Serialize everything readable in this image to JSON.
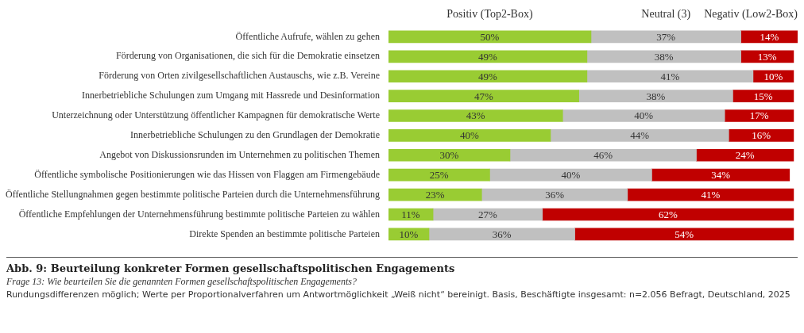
{
  "chart_data": {
    "type": "bar",
    "orientation": "horizontal",
    "stacked": true,
    "legend": "top",
    "tick_labels": "y",
    "title": "Abb. 9: Beurteilung konkreter Formen gesellschaftspolitischen Engagements",
    "subtitle": "Frage 13: Wie beurteilen Sie die genannten Formen gesellschaftspolitischen Engagements?",
    "annotations": [
      "Rundungsdifferenzen möglich; Werte per Proportionalverfahren um Antwortmöglichkeit „Weiß nicht“ bereinigt. Basis, Beschäftigte insgesamt: n=2.056 Befragt, Deutschland, 2025"
    ],
    "categories": [
      "Öffentliche Aufrufe, wählen zu gehen",
      "Förderung von Organisationen, die sich für die Demokratie einsetzen",
      "Förderung von Orten zivilgesellschaftlichen Austauschs, wie z.B. Vereine",
      "Innerbetriebliche Schulungen zum Umgang mit Hassrede und Desinformation",
      "Unterzeichnung oder Unterstützung öffentlicher Kampagnen für demokratische Werte",
      "Innerbetriebliche Schulungen zu den Grundlagen der Demokratie",
      "Angebot von Diskussionsrunden im Unternehmen zu politischen Themen",
      "Öffentliche symbolische Positionierungen wie das Hissen von Flaggen am Firmengebäude",
      "Öffentliche Stellungnahmen gegen bestimmte politische Parteien durch die Unternehmensführung",
      "Öffentliche Empfehlungen der Unternehmensführung bestimmte politische Parteien zu wählen",
      "Direkte Spenden an bestimmte politische Parteien"
    ],
    "xlim": [
      0,
      101
    ],
    "series": [
      {
        "name": "Positiv (Top2-Box)",
        "color": "#99cc33",
        "values": [
          50,
          49,
          49,
          47,
          43,
          40,
          30,
          25,
          23,
          11,
          10
        ],
        "value_labels": [
          "50%",
          "49%",
          "49%",
          "47%",
          "43%",
          "40%",
          "30%",
          "25%",
          "23%",
          "11%",
          "10%"
        ]
      },
      {
        "name": "Neutral (3)",
        "color": "#c0c0c0",
        "values": [
          37,
          38,
          41,
          38,
          40,
          44,
          46,
          40,
          36,
          27,
          36
        ],
        "value_labels": [
          "37%",
          "38%",
          "41%",
          "38%",
          "40%",
          "44%",
          "46%",
          "40%",
          "36%",
          "27%",
          "36%"
        ]
      },
      {
        "name": "Negativ (Low2-Box)",
        "color": "#c00000",
        "values": [
          14,
          13,
          10,
          15,
          17,
          16,
          24,
          34,
          41,
          62,
          54
        ],
        "value_labels": [
          "14%",
          "13%",
          "10%",
          "15%",
          "17%",
          "16%",
          "24%",
          "34%",
          "41%",
          "62%",
          "54%"
        ]
      }
    ]
  }
}
